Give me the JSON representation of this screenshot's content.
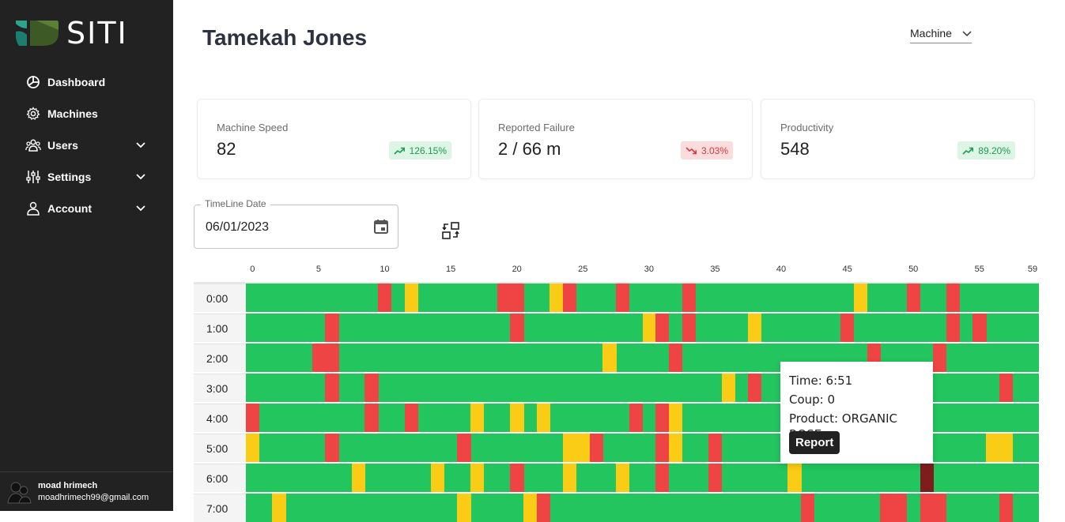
{
  "brand": {
    "name": "SITI"
  },
  "sidebar": {
    "items": [
      {
        "label": "Dashboard",
        "icon": "dashboard-icon",
        "expandable": false
      },
      {
        "label": "Machines",
        "icon": "gear-icon",
        "expandable": false
      },
      {
        "label": "Users",
        "icon": "users-icon",
        "expandable": true
      },
      {
        "label": "Settings",
        "icon": "sliders-icon",
        "expandable": true
      },
      {
        "label": "Account",
        "icon": "person-icon",
        "expandable": true
      }
    ],
    "user": {
      "name": "moad hrimech",
      "email": "moadhrimech99@gmail.com"
    }
  },
  "header": {
    "title": "Tamekah Jones",
    "machine_select": "Machine"
  },
  "stats": [
    {
      "label": "Machine Speed",
      "value": "82",
      "change": "126.15%",
      "trend": "up"
    },
    {
      "label": "Reported Failure",
      "value": "2 / 66 m",
      "change": "3.03%",
      "trend": "down"
    },
    {
      "label": "Productivity",
      "value": "548",
      "change": "89.20%",
      "trend": "up"
    }
  ],
  "date_field": {
    "label": "TimeLine Date",
    "value": "06/01/2023"
  },
  "timeline": {
    "ticks": [
      "0",
      "5",
      "10",
      "15",
      "20",
      "25",
      "30",
      "35",
      "40",
      "45",
      "50",
      "55",
      "59"
    ],
    "colors": {
      "ok": "#22c55e",
      "failure": "#ef4444",
      "warning": "#facc15",
      "selected": "#7f1d1d"
    },
    "rows": [
      {
        "label": "0:00",
        "segments": [
          [
            10,
            "failure"
          ],
          [
            12,
            "warning"
          ],
          [
            19,
            "failure"
          ],
          [
            20,
            "failure"
          ],
          [
            23,
            "warning"
          ],
          [
            24,
            "failure"
          ],
          [
            28,
            "failure"
          ],
          [
            33,
            "failure"
          ],
          [
            46,
            "warning"
          ],
          [
            50,
            "failure"
          ],
          [
            53,
            "failure"
          ]
        ]
      },
      {
        "label": "1:00",
        "segments": [
          [
            6,
            "failure"
          ],
          [
            20,
            "failure"
          ],
          [
            30,
            "warning"
          ],
          [
            31,
            "failure"
          ],
          [
            33,
            "failure"
          ],
          [
            38,
            "warning"
          ],
          [
            45,
            "failure"
          ],
          [
            53,
            "failure"
          ],
          [
            55,
            "failure"
          ]
        ]
      },
      {
        "label": "2:00",
        "segments": [
          [
            5,
            "failure"
          ],
          [
            6,
            "failure"
          ],
          [
            27,
            "warning"
          ],
          [
            32,
            "failure"
          ],
          [
            47,
            "failure"
          ],
          [
            52,
            "failure"
          ]
        ]
      },
      {
        "label": "3:00",
        "segments": [
          [
            6,
            "failure"
          ],
          [
            9,
            "failure"
          ],
          [
            36,
            "warning"
          ],
          [
            38,
            "failure"
          ],
          [
            57,
            "failure"
          ]
        ]
      },
      {
        "label": "4:00",
        "segments": [
          [
            0,
            "failure"
          ],
          [
            9,
            "failure"
          ],
          [
            12,
            "failure"
          ],
          [
            17,
            "warning"
          ],
          [
            20,
            "warning"
          ],
          [
            22,
            "warning"
          ],
          [
            29,
            "failure"
          ],
          [
            31,
            "failure"
          ],
          [
            32,
            "warning"
          ]
        ]
      },
      {
        "label": "5:00",
        "segments": [
          [
            0,
            "warning"
          ],
          [
            6,
            "failure"
          ],
          [
            16,
            "failure"
          ],
          [
            24,
            "warning"
          ],
          [
            25,
            "warning"
          ],
          [
            26,
            "failure"
          ],
          [
            31,
            "failure"
          ],
          [
            32,
            "warning"
          ],
          [
            35,
            "failure"
          ],
          [
            56,
            "warning"
          ],
          [
            57,
            "warning"
          ]
        ]
      },
      {
        "label": "6:00",
        "segments": [
          [
            8,
            "warning"
          ],
          [
            14,
            "warning"
          ],
          [
            17,
            "warning"
          ],
          [
            20,
            "failure"
          ],
          [
            24,
            "warning"
          ],
          [
            28,
            "warning"
          ],
          [
            31,
            "failure"
          ],
          [
            35,
            "failure"
          ],
          [
            41,
            "warning"
          ],
          [
            51,
            "selected"
          ]
        ]
      },
      {
        "label": "7:00",
        "segments": [
          [
            2,
            "warning"
          ],
          [
            16,
            "warning"
          ],
          [
            21,
            "warning"
          ],
          [
            22,
            "failure"
          ],
          [
            42,
            "failure"
          ],
          [
            48,
            "failure"
          ],
          [
            49,
            "failure"
          ],
          [
            51,
            "failure"
          ],
          [
            52,
            "failure"
          ],
          [
            57,
            "failure"
          ]
        ]
      }
    ]
  },
  "tooltip": {
    "time": "Time: 6:51",
    "coup": "Coup: 0",
    "product": "Product: ORGANIC ROSE",
    "button": "Report"
  }
}
